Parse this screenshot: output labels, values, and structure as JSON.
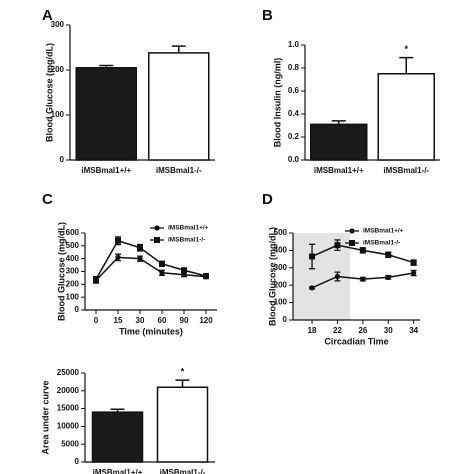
{
  "chart_data": [
    {
      "type": "bar",
      "panel_label": "A",
      "ylabel": "Blood Glucose (mg/dL)",
      "categories": [
        "iMSBmal1+/+",
        "iMSBmal1-/-"
      ],
      "values": [
        205,
        238
      ],
      "errors": [
        5,
        15
      ],
      "colors": [
        "#1a1a1a",
        "#ffffff"
      ],
      "ylim": [
        0,
        300
      ],
      "yticks": [
        0,
        100,
        200,
        300
      ]
    },
    {
      "type": "bar",
      "panel_label": "B",
      "ylabel": "Blood Insulin (ng/ml)",
      "categories": [
        "iMSBmal1+/+",
        "iMSBmal1-/-"
      ],
      "values": [
        0.31,
        0.75
      ],
      "errors": [
        0.03,
        0.14
      ],
      "colors": [
        "#1a1a1a",
        "#ffffff"
      ],
      "annotation": "*",
      "ylim": [
        0,
        1
      ],
      "yticks": [
        {
          "value": 0,
          "label": "0.0"
        },
        0.2,
        0.4,
        0.6,
        0.8,
        {
          "value": 1,
          "label": "1.0"
        }
      ]
    },
    {
      "type": "line",
      "panel_label": "C",
      "ylabel": "Blood Glucose (mg/dL)",
      "xlabel": "Time (minutes)",
      "categories": [
        "0",
        "15",
        "30",
        "60",
        "90",
        "120"
      ],
      "series": [
        {
          "name": "iMSBmal1+/+",
          "color": "#111111",
          "marker": "circle",
          "values": [
            230,
            410,
            400,
            290,
            275,
            260
          ],
          "errors": [
            20,
            25,
            20,
            20,
            15,
            15
          ]
        },
        {
          "name": "iMSBmal1-/-",
          "color": "#111111",
          "marker": "square",
          "values": [
            240,
            540,
            485,
            360,
            310,
            265
          ],
          "errors": [
            20,
            30,
            25,
            20,
            15,
            15
          ]
        }
      ],
      "ylim": [
        0,
        600
      ],
      "yticks": [
        0,
        100,
        200,
        300,
        400,
        500,
        600
      ]
    },
    {
      "type": "bar",
      "ylabel": "Area under curve",
      "categories": [
        "iMSBmal1+/+",
        "iMSBmal1-/-"
      ],
      "values": [
        14000,
        21000
      ],
      "errors": [
        800,
        2000
      ],
      "colors": [
        "#1a1a1a",
        "#ffffff"
      ],
      "annotation": "*",
      "ylim": [
        0,
        25000
      ],
      "yticks": [
        0,
        5000,
        10000,
        15000,
        20000,
        25000
      ]
    },
    {
      "type": "line",
      "panel_label": "D",
      "ylabel": "Blood Glucose (mg/dL)",
      "xlabel": "Circadian Time",
      "x": [
        18,
        22,
        26,
        30,
        34
      ],
      "xlim": [
        15,
        35
      ],
      "xticks": [
        18,
        22,
        26,
        30,
        34
      ],
      "shaded_xrange": [
        15,
        24
      ],
      "series": [
        {
          "name": "iMSBmal1+/+",
          "color": "#111111",
          "marker": "circle",
          "values": [
            185,
            250,
            235,
            245,
            270
          ],
          "errors": [
            5,
            25,
            10,
            10,
            15
          ]
        },
        {
          "name": "iMSBmal1-/-",
          "color": "#111111",
          "marker": "square",
          "values": [
            365,
            430,
            400,
            375,
            330
          ],
          "errors": [
            70,
            30,
            15,
            15,
            15
          ]
        }
      ],
      "ylim": [
        0,
        500
      ],
      "yticks": [
        0,
        100,
        200,
        300,
        400,
        500
      ]
    }
  ]
}
